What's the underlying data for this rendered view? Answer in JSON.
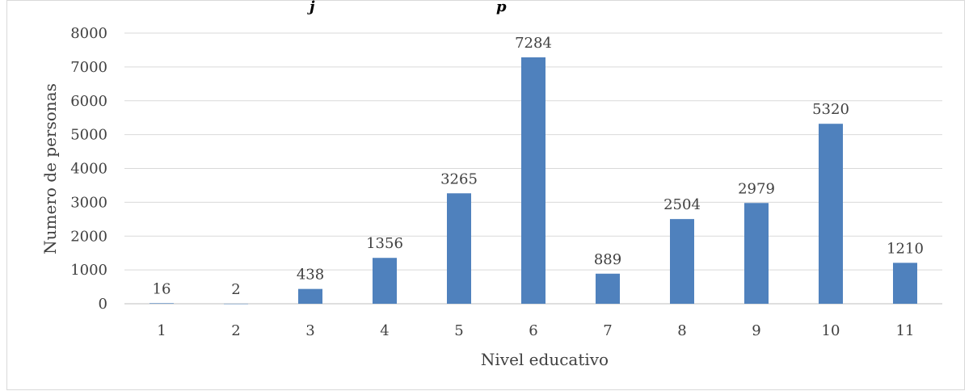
{
  "caption": {
    "left": "j",
    "right": "p"
  },
  "colors": {
    "bar": "#4f81bd",
    "grid": "#d9d9d9",
    "text": "#404040"
  },
  "chart_data": {
    "type": "bar",
    "categories": [
      "1",
      "2",
      "3",
      "4",
      "5",
      "6",
      "7",
      "8",
      "9",
      "10",
      "11"
    ],
    "values": [
      16,
      2,
      438,
      1356,
      3265,
      7284,
      889,
      2504,
      2979,
      5320,
      1210
    ],
    "data_labels": [
      "16",
      "2",
      "438",
      "1356",
      "3265",
      "7284",
      "889",
      "2504",
      "2979",
      "5320",
      "1210"
    ],
    "xlabel": "Nivel educativo",
    "ylabel": "Numero de personas",
    "ylim": [
      0,
      8000
    ],
    "yticks": [
      "0",
      "1000",
      "2000",
      "3000",
      "4000",
      "5000",
      "6000",
      "7000",
      "8000"
    ],
    "grid": true,
    "legend": "none"
  }
}
